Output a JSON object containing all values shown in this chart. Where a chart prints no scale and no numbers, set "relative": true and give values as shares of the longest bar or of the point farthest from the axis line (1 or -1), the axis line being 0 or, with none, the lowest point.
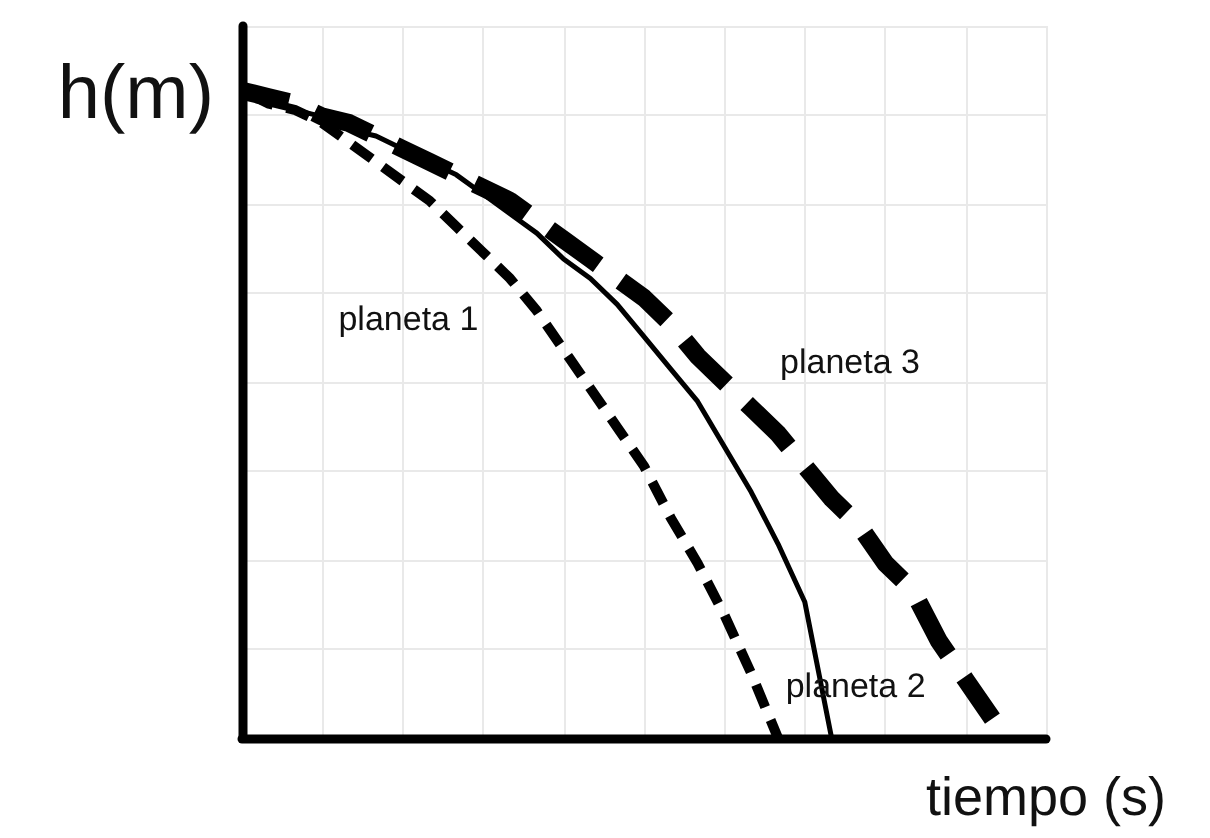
{
  "chart_data": {
    "type": "line",
    "relative": true,
    "xlabel": "tiempo (s)",
    "ylabel": "h(m)",
    "categories": [
      null,
      null,
      null,
      null,
      null,
      null,
      null,
      null,
      null,
      null,
      null,
      null,
      null,
      null,
      null,
      null,
      null,
      null,
      null,
      null,
      null,
      null,
      null,
      null,
      null,
      null,
      null,
      null,
      null,
      null,
      null
    ],
    "series": [
      {
        "name": "planeta 1",
        "color": "#000000",
        "line_style": "dashed",
        "values": [
          1,
          0.98,
          0.97,
          0.95,
          0.92,
          0.89,
          0.86,
          0.83,
          0.79,
          0.75,
          0.71,
          0.66,
          0.6,
          0.54,
          0.48,
          0.42,
          0.34,
          0.27,
          0.19,
          0.1,
          0,
          null,
          null,
          null,
          null,
          null,
          null,
          null,
          null,
          null,
          null
        ]
      },
      {
        "name": "planeta 2",
        "color": "#000000",
        "line_style": "solid",
        "values": [
          1,
          0.99,
          0.97,
          0.96,
          0.94,
          0.93,
          0.91,
          0.89,
          0.87,
          0.84,
          0.81,
          0.78,
          0.74,
          0.71,
          0.67,
          0.62,
          0.57,
          0.52,
          0.45,
          0.38,
          0.3,
          0.21,
          0,
          null,
          null,
          null,
          null,
          null,
          null,
          null,
          null
        ]
      },
      {
        "name": "planeta 3",
        "color": "#000000",
        "line_style": "dashed",
        "values": [
          1,
          0.99,
          0.98,
          0.96,
          0.95,
          0.93,
          0.91,
          0.89,
          0.87,
          0.85,
          0.83,
          0.8,
          0.77,
          0.74,
          0.71,
          0.68,
          0.64,
          0.59,
          0.55,
          0.51,
          0.47,
          0.42,
          0.37,
          0.33,
          0.27,
          0.23,
          0.15,
          0.09,
          0.03,
          null,
          null
        ]
      }
    ],
    "grid": true,
    "legend": false,
    "marker": "none"
  }
}
